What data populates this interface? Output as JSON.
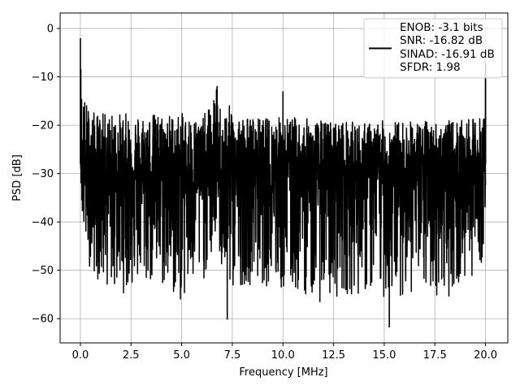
{
  "chart_data": {
    "type": "line",
    "title": "",
    "xlabel": "Frequency [MHz]",
    "ylabel": "PSD [dB]",
    "xlim": [
      -1.0,
      21.1
    ],
    "ylim": [
      -65.0,
      3.2
    ],
    "xticks": [
      0.0,
      2.5,
      5.0,
      7.5,
      10.0,
      12.5,
      15.0,
      17.5,
      20.0
    ],
    "xtick_labels": [
      "0.0",
      "2.5",
      "5.0",
      "7.5",
      "10.0",
      "12.5",
      "15.0",
      "17.5",
      "20.0"
    ],
    "yticks": [
      0,
      -10,
      -20,
      -30,
      -40,
      -50,
      -60
    ],
    "ytick_labels": [
      "0",
      "−10",
      "−20",
      "−30",
      "−40",
      "−50",
      "−60"
    ],
    "grid": true,
    "legend_position": "top-right",
    "series": [
      {
        "color": "#000000",
        "description": "Dense noisy power spectral density trace: envelope roughly between -20 dB (top) and -45 dB (bottom), mean around -30 dB",
        "envelope_x": [
          0.0,
          0.05,
          0.1,
          0.2,
          0.5,
          1.0,
          2.0,
          3.0,
          4.0,
          5.0,
          6.0,
          6.5,
          6.7,
          6.8,
          7.0,
          7.5,
          8.0,
          9.0,
          10.0,
          11.0,
          12.0,
          13.0,
          14.0,
          15.0,
          16.0,
          17.0,
          18.0,
          19.0,
          19.9,
          20.0
        ],
        "envelope_top": [
          -2.0,
          -7.5,
          -13.0,
          -14.0,
          -17.0,
          -17.5,
          -17.5,
          -17.5,
          -17.5,
          -17.5,
          -18.5,
          -15.0,
          -12.0,
          -14.0,
          -17.0,
          -15.5,
          -18.0,
          -18.5,
          -18.0,
          -18.5,
          -19.0,
          -19.0,
          -19.5,
          -19.0,
          -19.0,
          -19.0,
          -19.0,
          -19.0,
          -18.0,
          -10.0
        ],
        "envelope_bottom": [
          -28.0,
          -36.0,
          -40.0,
          -45.0,
          -50.0,
          -53.0,
          -55.0,
          -53.0,
          -54.0,
          -57.0,
          -53.0,
          -48.0,
          -42.0,
          -45.0,
          -52.0,
          -55.0,
          -53.0,
          -53.0,
          -55.0,
          -55.0,
          -57.0,
          -55.0,
          -55.0,
          -56.0,
          -55.0,
          -55.0,
          -56.0,
          -53.0,
          -48.0,
          -35.0
        ],
        "notable_points": [
          {
            "x": 0.0,
            "y": -2.0
          },
          {
            "x": 6.75,
            "y": -11.9
          },
          {
            "x": 7.25,
            "y": -60.2
          },
          {
            "x": 10.0,
            "y": -13.0
          },
          {
            "x": 15.25,
            "y": -61.8
          },
          {
            "x": 20.0,
            "y": -10.0
          },
          {
            "x": 20.0,
            "y": -7.0
          }
        ]
      }
    ],
    "legend": {
      "lines": [
        "ENOB: -3.1 bits",
        "SNR: -16.82 dB",
        "SINAD: -16.91 dB",
        "SFDR: 1.98"
      ]
    }
  }
}
